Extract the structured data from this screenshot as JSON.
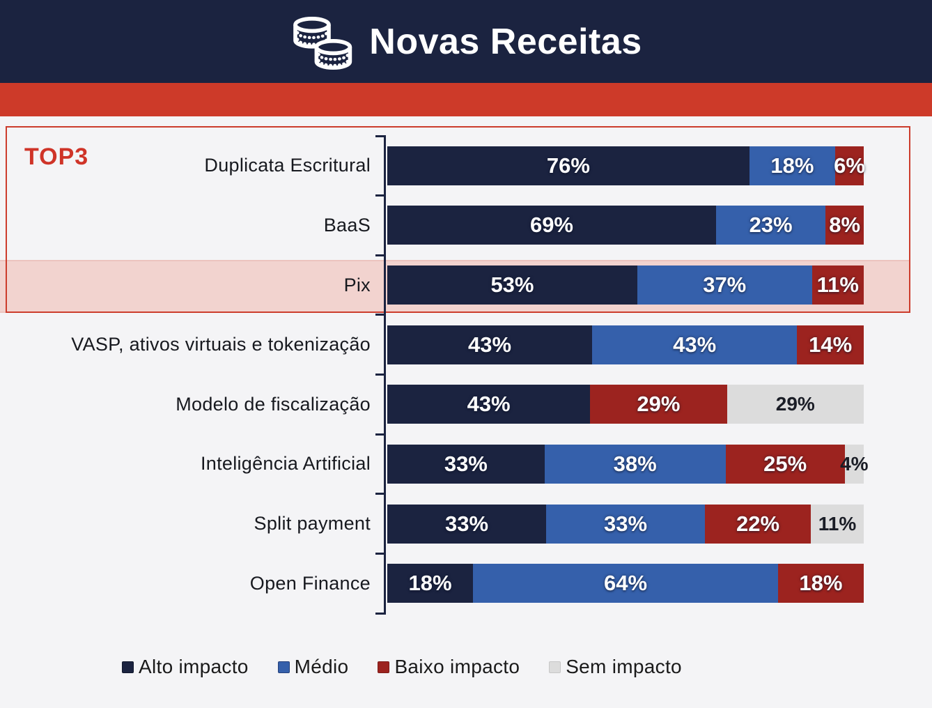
{
  "header": {
    "title": "Novas Receitas",
    "icon": "coins-icon",
    "bg_color": "#1b2340",
    "stripe_color": "#cd3a29"
  },
  "top3": {
    "label": "TOP3",
    "color": "#cf3428",
    "box_categories": [
      "Duplicata Escritural",
      "BaaS",
      "Pix"
    ],
    "highlighted_category": "Pix",
    "highlight_color": "#f2d3cf"
  },
  "chart_data": {
    "type": "bar",
    "orientation": "horizontal",
    "stacked": true,
    "unit": "%",
    "xlim": [
      0,
      100
    ],
    "grid": false,
    "legend_position": "bottom",
    "categories": [
      "Duplicata Escritural",
      "BaaS",
      "Pix",
      "VASP, ativos virtuais e tokenização",
      "Modelo de fiscalização",
      "Inteligência Artificial",
      "Split payment",
      "Open Finance"
    ],
    "series": [
      {
        "name": "Alto impacto",
        "color": "#1b2340",
        "values": [
          76,
          69,
          53,
          43,
          43,
          33,
          33,
          18
        ]
      },
      {
        "name": "Médio",
        "color": "#3560ab",
        "values": [
          18,
          23,
          37,
          43,
          null,
          38,
          33,
          64
        ]
      },
      {
        "name": "Baixo impacto",
        "color": "#9c231f",
        "values": [
          6,
          8,
          11,
          14,
          29,
          25,
          22,
          18
        ]
      },
      {
        "name": "Sem impacto",
        "color": "#dcdcdc",
        "values": [
          null,
          null,
          null,
          null,
          29,
          4,
          11,
          null
        ]
      }
    ]
  },
  "legend": {
    "items": [
      {
        "label": "Alto impacto",
        "color": "#1b2340",
        "border": "#10172b"
      },
      {
        "label": "Médio",
        "color": "#3560ab",
        "border": "#24407a"
      },
      {
        "label": "Baixo impacto",
        "color": "#9c231f",
        "border": "#7c1b18"
      },
      {
        "label": "Sem impacto",
        "color": "#dcdcdc",
        "border": "#c6c6c6"
      }
    ]
  }
}
